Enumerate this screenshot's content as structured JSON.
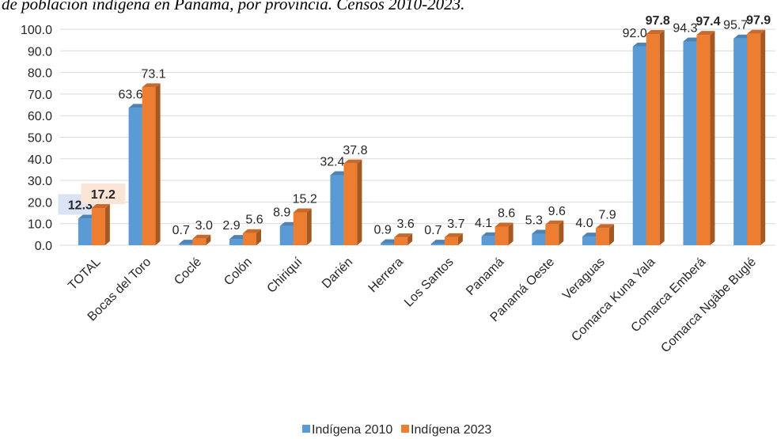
{
  "chart_data": {
    "type": "bar3d",
    "title": "de población indígena en Panamá, por provincia. Censos 2010-2023.",
    "categories": [
      "TOTAL",
      "Bocas del Toro",
      "Coclé",
      "Colón",
      "Chiriquí",
      "Darién",
      "Herrera",
      "Los Santos",
      "Panamá",
      "Panamá Oeste",
      "Veraguas",
      "Comarca Kuna Yala",
      "Comarca  Emberá",
      "Comarca Ngäbe Buglé"
    ],
    "series": [
      {
        "name": "Indígena 2010",
        "color": "#5b9bd5",
        "values": [
          12.3,
          63.6,
          0.7,
          2.9,
          8.9,
          32.4,
          0.9,
          0.7,
          4.1,
          5.3,
          4.0,
          92.0,
          94.3,
          95.7
        ],
        "value_labels": [
          "12.3",
          "63.6",
          "0.7",
          "2.9",
          "8.9",
          "32.4",
          "0.9",
          "0.7",
          "4.1",
          "5.3",
          "4.0",
          "92.0",
          "94.3",
          "95.7"
        ]
      },
      {
        "name": "Indígena 2023",
        "color": "#ed7d31",
        "values": [
          17.2,
          73.1,
          3.0,
          5.6,
          15.2,
          37.8,
          3.6,
          3.7,
          8.6,
          9.6,
          7.9,
          97.8,
          97.4,
          97.9
        ],
        "value_labels": [
          "17.2",
          "73.1",
          "3.0",
          "5.6",
          "15.2",
          "37.8",
          "3.6",
          "3.7",
          "8.6",
          "9.6",
          "7.9",
          "97.8",
          "97.4",
          "97.9"
        ]
      }
    ],
    "ylim": [
      0,
      100
    ],
    "yticks": [
      {
        "value": 0,
        "label": "0.0"
      },
      {
        "value": 10,
        "label": "10.0"
      },
      {
        "value": 20,
        "label": "20.0"
      },
      {
        "value": 30,
        "label": "30.0"
      },
      {
        "value": 40,
        "label": "40.0"
      },
      {
        "value": 50,
        "label": "50.0"
      },
      {
        "value": 60,
        "label": "60.0"
      },
      {
        "value": 70,
        "label": "70.0"
      },
      {
        "value": 80,
        "label": "80.0"
      },
      {
        "value": 90,
        "label": "90.0"
      },
      {
        "value": 100,
        "label": "100.0"
      }
    ],
    "grid": true,
    "legend": "bottom"
  }
}
